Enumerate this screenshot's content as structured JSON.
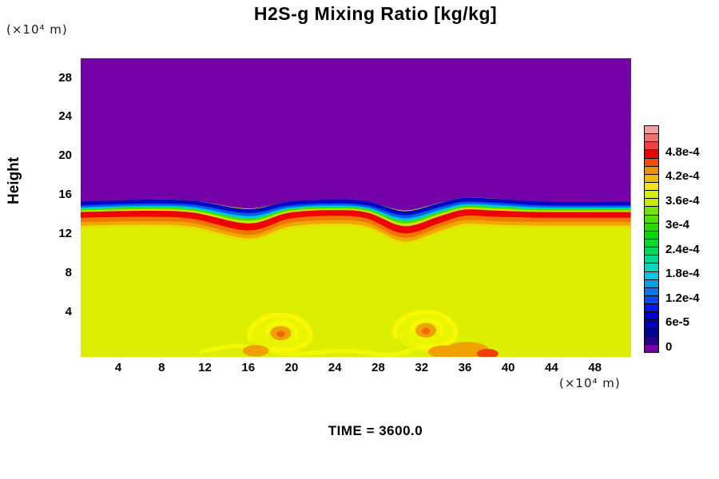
{
  "title": "H2S-g Mixing Ratio [kg/kg]",
  "y_axis": {
    "label": "Height",
    "unit_label": "(×10⁴  m)",
    "ticks": [
      28,
      24,
      20,
      16,
      12,
      8,
      4
    ]
  },
  "x_axis": {
    "unit_label": "(×10⁴  m)",
    "ticks": [
      4,
      8,
      12,
      16,
      20,
      24,
      28,
      32,
      36,
      40,
      44,
      48
    ]
  },
  "footer": {
    "time_label": "TIME = 3600.0"
  },
  "colorbar": {
    "tick_labels": [
      "4.8e-4",
      "4.2e-4",
      "3.6e-4",
      "3e-4",
      "2.4e-4",
      "1.8e-4",
      "1.2e-4",
      "6e-5",
      "0"
    ],
    "segment_colors": [
      "#7800A8",
      "#28008C",
      "#000090",
      "#0000B0",
      "#0000D0",
      "#0018E8",
      "#0048F0",
      "#0078F0",
      "#00A0F0",
      "#00C8E8",
      "#00D8C0",
      "#00D890",
      "#00D860",
      "#00D830",
      "#00D808",
      "#28D800",
      "#50E000",
      "#78E000",
      "#C8E800",
      "#D8F000",
      "#F0E800",
      "#F0B800",
      "#F09000",
      "#F05000",
      "#F00000",
      "#F04040",
      "#F07070",
      "#F0A0A0"
    ]
  },
  "chart_data": {
    "type": "heatmap",
    "title": "H2S-g Mixing Ratio [kg/kg]",
    "xlabel": "(×10⁴ m)",
    "ylabel": "Height (×10⁴ m)",
    "time": 3600.0,
    "x_range": [
      0,
      51.3
    ],
    "y_range": [
      0,
      30.6
    ],
    "level_step": 2e-05,
    "labeled_levels": [
      0,
      6e-05,
      0.00012,
      0.00018,
      0.00024,
      0.0003,
      0.00036,
      0.00042,
      0.00048
    ],
    "legend_position": "right",
    "grid": false,
    "description": "Two-layer stratified field: upper region mixing ratio ~0 (purple), lower region ~3.4e-4 (yellow-green), thin undulating interface near height 14-15 x10^4 m peaking near 5e-4 (red band), with two vortex swirls near the surface at x~19 and x~32.5 x10^4 m.",
    "regions": {
      "upper_value": 0,
      "lower_value": 0.00034,
      "interface_height": 14.5
    },
    "colors": {
      "upper": "#7400A8",
      "lower": "#DCEF00",
      "vortex_fill": "#E9F500",
      "vortex_arm": "#F8F800",
      "vortex_core": "#F0A000",
      "vortex_core_inner": "#F06800",
      "wisp": "#F2F800"
    },
    "interface": {
      "x": [
        0.5,
        6.4,
        10.9,
        16.0,
        19.7,
        24.1,
        27.1,
        30.4,
        33.7,
        35.9,
        38.9,
        43.3,
        51.3
      ],
      "top_height": [
        15.3,
        15.5,
        15.4,
        14.6,
        15.3,
        15.5,
        15.3,
        14.4,
        15.2,
        15.7,
        15.6,
        15.3,
        15.3
      ],
      "red_height": [
        14.1,
        14.2,
        14.0,
        12.8,
        14.0,
        14.3,
        14.0,
        12.5,
        13.6,
        14.3,
        14.2,
        14.1,
        14.1
      ]
    },
    "bands": [
      {
        "t": 0.15,
        "color": "#0008C8",
        "width": 5
      },
      {
        "t": 0.32,
        "color": "#0060E8",
        "width": 5
      },
      {
        "t": 0.48,
        "color": "#00C8E0",
        "width": 4
      },
      {
        "t": 0.62,
        "color": "#48E000",
        "width": 4
      },
      {
        "t": 0.78,
        "color": "#C8E800",
        "width": 3
      },
      {
        "t": 1.0,
        "color": "#F00000",
        "width": 11
      },
      {
        "off": 8,
        "color": "#F07800",
        "width": 6
      },
      {
        "off": 13,
        "color": "#F0A800",
        "width": 5
      },
      {
        "off": 17,
        "color": "#E8E000",
        "width": 4
      }
    ],
    "vortices": [
      {
        "x": 19.0,
        "y": 1.8
      },
      {
        "x": 32.4,
        "y": 2.1
      }
    ],
    "surface_blobs": [
      {
        "x": 16.7,
        "y": 0.0,
        "rx": 1.2,
        "ry": 0.6,
        "color": "#F0A000"
      },
      {
        "x": 34.1,
        "y": -0.1,
        "rx": 1.5,
        "ry": 0.65,
        "color": "#F0A000"
      },
      {
        "x": 36.2,
        "y": 0.1,
        "rx": 2.0,
        "ry": 0.8,
        "color": "#F0A000"
      },
      {
        "x": 38.1,
        "y": -0.3,
        "rx": 1.0,
        "ry": 0.5,
        "color": "#F04000"
      }
    ],
    "wisp_line": [
      [
        11.6,
        -0.1
      ],
      [
        15.3,
        0.5
      ],
      [
        19.7,
        -0.3
      ],
      [
        24.9,
        0.0
      ],
      [
        29.3,
        -0.4
      ],
      [
        32.2,
        0.4
      ],
      [
        35.2,
        -0.2
      ]
    ]
  }
}
